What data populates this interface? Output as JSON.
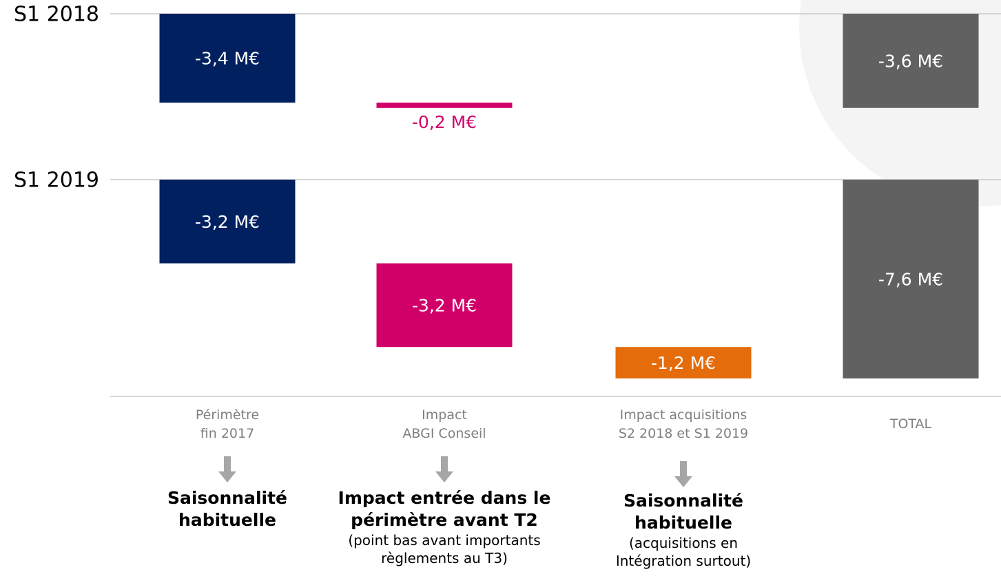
{
  "chart_data": {
    "type": "waterfall",
    "categories": [
      "Périmètre\nfin 2017",
      "Impact\nABGI Conseil",
      "Impact acquisitions\nS2 2018 et S1 2019",
      "TOTAL"
    ],
    "colors": [
      "#002060",
      "#d10069",
      "#e46c0a",
      "#616161"
    ],
    "series": [
      {
        "name": "S1 2018",
        "values": [
          -3.4,
          -0.2,
          null,
          -3.6
        ],
        "value_labels": [
          "-3,4 M€",
          "-0,2 M€",
          null,
          "-3,6 M€"
        ]
      },
      {
        "name": "S1 2019",
        "values": [
          -3.2,
          -3.2,
          -1.2,
          -7.6
        ],
        "value_labels": [
          "-3,2 M€",
          "-3,2 M€",
          "-1,2 M€",
          "-7,6 M€"
        ]
      }
    ],
    "annotations": [
      {
        "title": "Saisonnalité\nhabituelle"
      },
      {
        "title": "Impact entrée dans le\npérimètre avant T2",
        "note": "(point bas avant importants\nrèglements au T3)"
      },
      {
        "title": "Saisonnalité\nhabituelle",
        "note": "(acquisitions en\nIntégration surtout)"
      }
    ]
  }
}
